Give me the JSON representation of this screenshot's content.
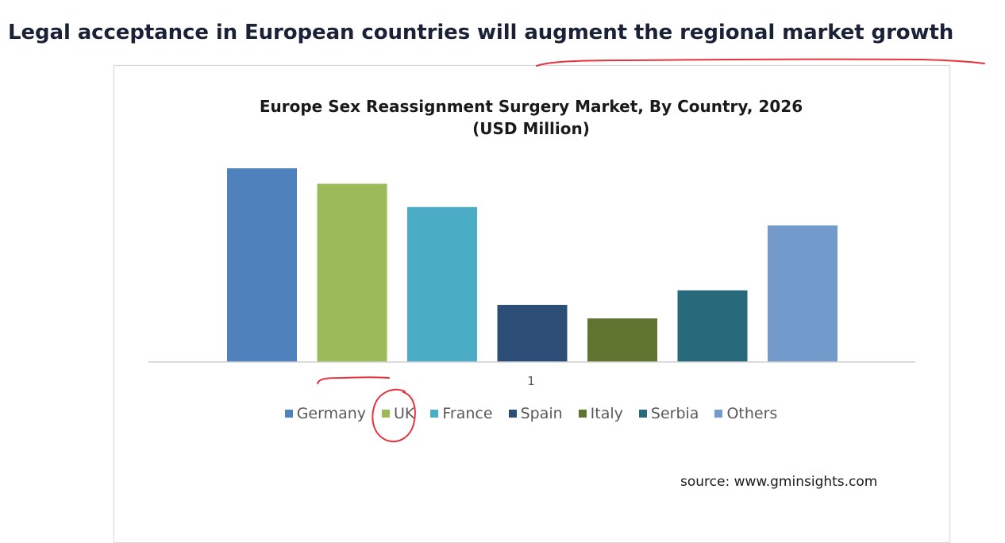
{
  "heading": "Legal acceptance in European countries will augment the regional market growth",
  "source": "source: www.gminsights.com",
  "colors": {
    "Germany": "#4f81bd",
    "UK": "#9bbb59",
    "France": "#4bacc6",
    "Spain": "#2c4d75",
    "Italy": "#5f7530",
    "Serbia": "#276a7c",
    "Others": "#729aca",
    "annotation": "#e8323c"
  },
  "chart_data": {
    "type": "bar",
    "title": "Europe Sex Reassignment  Surgery Market, By Country, 2026",
    "subtitle": "(USD Million)",
    "categories": [
      "1"
    ],
    "series": [
      {
        "name": "Germany",
        "values": [
          100
        ]
      },
      {
        "name": "UK",
        "values": [
          92
        ]
      },
      {
        "name": "France",
        "values": [
          80
        ]
      },
      {
        "name": "Spain",
        "values": [
          29.5
        ]
      },
      {
        "name": "Italy",
        "values": [
          22.5
        ]
      },
      {
        "name": "Serbia",
        "values": [
          37
        ]
      },
      {
        "name": "Others",
        "values": [
          70.5
        ]
      }
    ],
    "ylim": [
      0,
      100
    ],
    "grid": false,
    "legend": "bottom"
  }
}
